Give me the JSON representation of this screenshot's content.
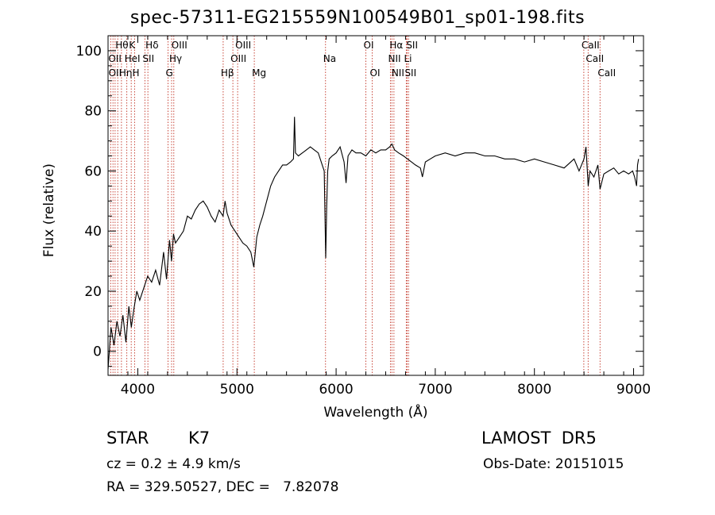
{
  "chart_data": {
    "type": "line",
    "title": "spec-57311-EG215559N100549B01_sp01-198.fits",
    "xlabel": "Wavelength (Å)",
    "ylabel": "Flux (relative)",
    "xlim": [
      3700,
      9100
    ],
    "ylim": [
      -8,
      105
    ],
    "xticks": [
      4000,
      5000,
      6000,
      7000,
      8000,
      9000
    ],
    "yticks": [
      0,
      20,
      40,
      60,
      80,
      100
    ],
    "grid": false,
    "series": [
      {
        "x": [
          3700,
          3730,
          3760,
          3790,
          3820,
          3850,
          3880,
          3910,
          3935,
          3960,
          3990,
          4020,
          4060,
          4100,
          4140,
          4180,
          4220,
          4260,
          4290,
          4320,
          4340,
          4360,
          4380,
          4420,
          4460,
          4500,
          4540,
          4580,
          4620,
          4660,
          4700,
          4740,
          4780,
          4820,
          4860,
          4880,
          4900,
          4940,
          4980,
          5020,
          5060,
          5100,
          5140,
          5170,
          5200,
          5230,
          5260,
          5300,
          5340,
          5380,
          5420,
          5460,
          5500,
          5540,
          5570,
          5580,
          5590,
          5620,
          5660,
          5700,
          5740,
          5780,
          5820,
          5860,
          5880,
          5895,
          5905,
          5915,
          5930,
          5960,
          6000,
          6040,
          6080,
          6100,
          6120,
          6160,
          6200,
          6250,
          6300,
          6350,
          6400,
          6450,
          6500,
          6540,
          6563,
          6590,
          6630,
          6680,
          6720,
          6760,
          6800,
          6850,
          6870,
          6900,
          6950,
          7000,
          7100,
          7200,
          7300,
          7400,
          7500,
          7600,
          7700,
          7800,
          7900,
          8000,
          8100,
          8200,
          8300,
          8400,
          8450,
          8500,
          8520,
          8542,
          8560,
          8600,
          8640,
          8662,
          8700,
          8750,
          8800,
          8850,
          8900,
          8950,
          8990,
          9010,
          9030,
          9040,
          9050
        ],
        "y": [
          -6,
          8,
          2,
          10,
          5,
          12,
          3,
          15,
          8,
          14,
          20,
          17,
          21,
          25,
          23,
          27,
          22,
          33,
          24,
          37,
          30,
          39,
          36,
          38,
          40,
          45,
          44,
          47,
          49,
          50,
          48,
          45,
          43,
          47,
          45,
          50,
          46,
          42,
          40,
          38,
          36,
          35,
          33,
          28,
          38,
          42,
          45,
          50,
          55,
          58,
          60,
          62,
          62,
          63,
          64,
          78,
          66,
          65,
          66,
          67,
          68,
          67,
          66,
          62,
          60,
          31,
          48,
          60,
          64,
          65,
          66,
          68,
          63,
          56,
          65,
          67,
          66,
          66,
          65,
          67,
          66,
          67,
          67,
          68,
          69,
          67,
          66,
          65,
          64,
          63,
          62,
          61,
          58,
          63,
          64,
          65,
          66,
          65,
          66,
          66,
          65,
          65,
          64,
          64,
          63,
          64,
          63,
          62,
          61,
          64,
          60,
          64,
          68,
          55,
          60,
          58,
          62,
          54,
          59,
          60,
          61,
          59,
          60,
          59,
          60,
          58,
          55,
          62,
          64
        ]
      }
    ],
    "line_labels": [
      {
        "label": "Hθ",
        "wl": 3798,
        "row": 0
      },
      {
        "label": "K",
        "wl": 3934,
        "row": 0
      },
      {
        "label": "Hδ",
        "wl": 4102,
        "row": 0
      },
      {
        "label": "OIII",
        "wl": 4363,
        "row": 0
      },
      {
        "label": "OIII",
        "wl": 5007,
        "row": 0
      },
      {
        "label": "OI",
        "wl": 6300,
        "row": 0
      },
      {
        "label": "Hα",
        "wl": 6563,
        "row": 0
      },
      {
        "label": "SII",
        "wl": 6731,
        "row": 0
      },
      {
        "label": "CaII",
        "wl": 8498,
        "row": 0
      },
      {
        "label": "OII",
        "wl": 3727,
        "row": 1
      },
      {
        "label": "HeI",
        "wl": 3889,
        "row": 1
      },
      {
        "label": "SII",
        "wl": 4072,
        "row": 1
      },
      {
        "label": "Hγ",
        "wl": 4341,
        "row": 1
      },
      {
        "label": "OIII",
        "wl": 4959,
        "row": 1
      },
      {
        "label": "Na",
        "wl": 5893,
        "row": 1
      },
      {
        "label": "NII",
        "wl": 6548,
        "row": 1
      },
      {
        "label": "Li",
        "wl": 6708,
        "row": 1
      },
      {
        "label": "CaII",
        "wl": 8542,
        "row": 1
      },
      {
        "label": "OII",
        "wl": 3729,
        "row": 2
      },
      {
        "label": "Hη",
        "wl": 3835,
        "row": 2
      },
      {
        "label": "H",
        "wl": 3968,
        "row": 2
      },
      {
        "label": "G",
        "wl": 4305,
        "row": 2
      },
      {
        "label": "Hβ",
        "wl": 4861,
        "row": 2
      },
      {
        "label": "Mg",
        "wl": 5175,
        "row": 2
      },
      {
        "label": "OI",
        "wl": 6364,
        "row": 2
      },
      {
        "label": "NII",
        "wl": 6583,
        "row": 2
      },
      {
        "label": "SII",
        "wl": 6716,
        "row": 2
      },
      {
        "label": "CaII",
        "wl": 8662,
        "row": 2
      }
    ],
    "vlines": [
      3727,
      3750,
      3771,
      3798,
      3835,
      3889,
      3934,
      3968,
      4072,
      4102,
      4305,
      4341,
      4363,
      4861,
      4959,
      5007,
      5175,
      5893,
      6300,
      6364,
      6548,
      6563,
      6583,
      6708,
      6716,
      6731,
      8498,
      8542,
      8662
    ],
    "colors": {
      "spectrum": "#000000",
      "lines": "#c8473a",
      "axes": "#000000"
    }
  },
  "info": {
    "obj_type": "STAR",
    "obj_class": "K7",
    "survey": "LAMOST  DR5",
    "cz": "cz = 0.2 ± 4.9 km/s",
    "obs_date": "Obs-Date: 20151015",
    "radec": "RA = 329.50527, DEC =   7.82078"
  }
}
